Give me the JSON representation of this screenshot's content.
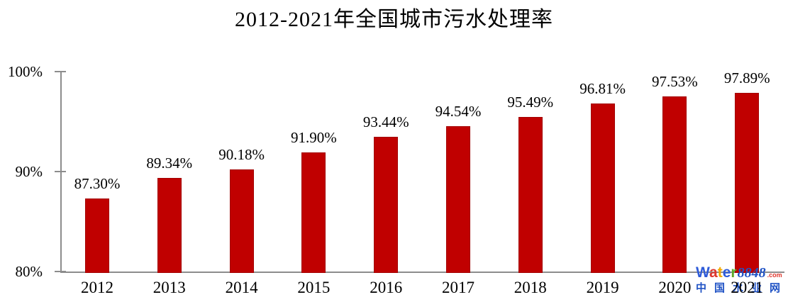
{
  "chart_data": {
    "type": "bar",
    "title": "2012-2021年全国城市污水处理率",
    "categories": [
      "2012",
      "2013",
      "2014",
      "2015",
      "2016",
      "2017",
      "2018",
      "2019",
      "2020",
      "2021"
    ],
    "values": [
      87.3,
      89.34,
      90.18,
      91.9,
      93.44,
      94.54,
      95.49,
      96.81,
      97.53,
      97.89
    ],
    "value_labels": [
      "87.30%",
      "89.34%",
      "90.18%",
      "91.90%",
      "93.44%",
      "94.54%",
      "95.49%",
      "96.81%",
      "97.53%",
      "97.89%"
    ],
    "xlabel": "",
    "ylabel": "",
    "ylim": [
      80,
      100
    ],
    "yticks": [
      {
        "value": 100,
        "label": "100%"
      },
      {
        "value": 90,
        "label": "90%"
      },
      {
        "value": 80,
        "label": "80%"
      }
    ],
    "grid": false,
    "legend": false,
    "bar_color": "#C00000",
    "bar_border_color": "#A30000",
    "axis_color": "#8C8C8C",
    "text_color": "#000000"
  },
  "watermark": {
    "brand_letters": [
      {
        "ch": "W",
        "color": "#2E5BD9"
      },
      {
        "ch": "a",
        "color": "#DF362C"
      },
      {
        "ch": "t",
        "color": "#F2A900"
      },
      {
        "ch": "e",
        "color": "#2E5BD9"
      },
      {
        "ch": "r",
        "color": "#5BA829"
      }
    ],
    "number": "8848",
    "number_color": "#2053C5",
    "suffix": ".com",
    "suffix_color": "#DF362C",
    "subtitle": "中国水业网",
    "subtitle_color": "#2053C5"
  }
}
